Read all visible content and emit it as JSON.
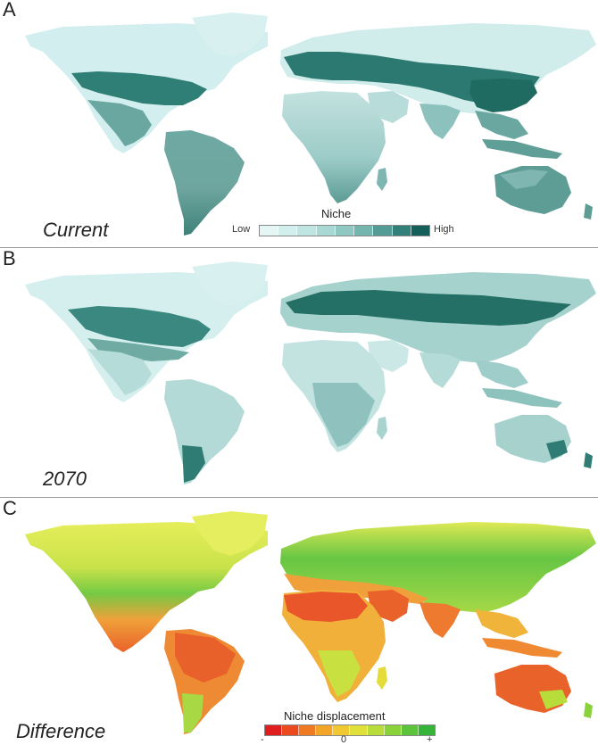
{
  "panels": [
    {
      "letter": "A",
      "label": "Current",
      "legend": {
        "title": "Niche",
        "low": "Low",
        "high": "High",
        "colors": [
          "#e6f6f5",
          "#d3efed",
          "#bfe5e2",
          "#a9d8d4",
          "#8fc8c3",
          "#74b5af",
          "#539b94",
          "#33807a",
          "#145f59"
        ]
      }
    },
    {
      "letter": "B",
      "label": "2070"
    },
    {
      "letter": "C",
      "label": "Difference",
      "legend": {
        "title": "Niche displacement",
        "minus": "-",
        "zero": "0",
        "plus": "+",
        "colors": [
          "#e01e1e",
          "#ea4a1e",
          "#f07a22",
          "#f3a528",
          "#f0c832",
          "#dfe03a",
          "#b8dc3a",
          "#8ad23a",
          "#5cc43a",
          "#36b43a"
        ]
      }
    }
  ],
  "palettes": {
    "niche": {
      "light": "#d4eeee",
      "mid": "#8cc1bd",
      "dark": "#2d7a72"
    },
    "diff": {
      "cold_green": "#74c944",
      "lime": "#c8e24a",
      "yellow": "#e8ec5a",
      "orange": "#f0a03a",
      "red": "#e95a2a"
    }
  }
}
